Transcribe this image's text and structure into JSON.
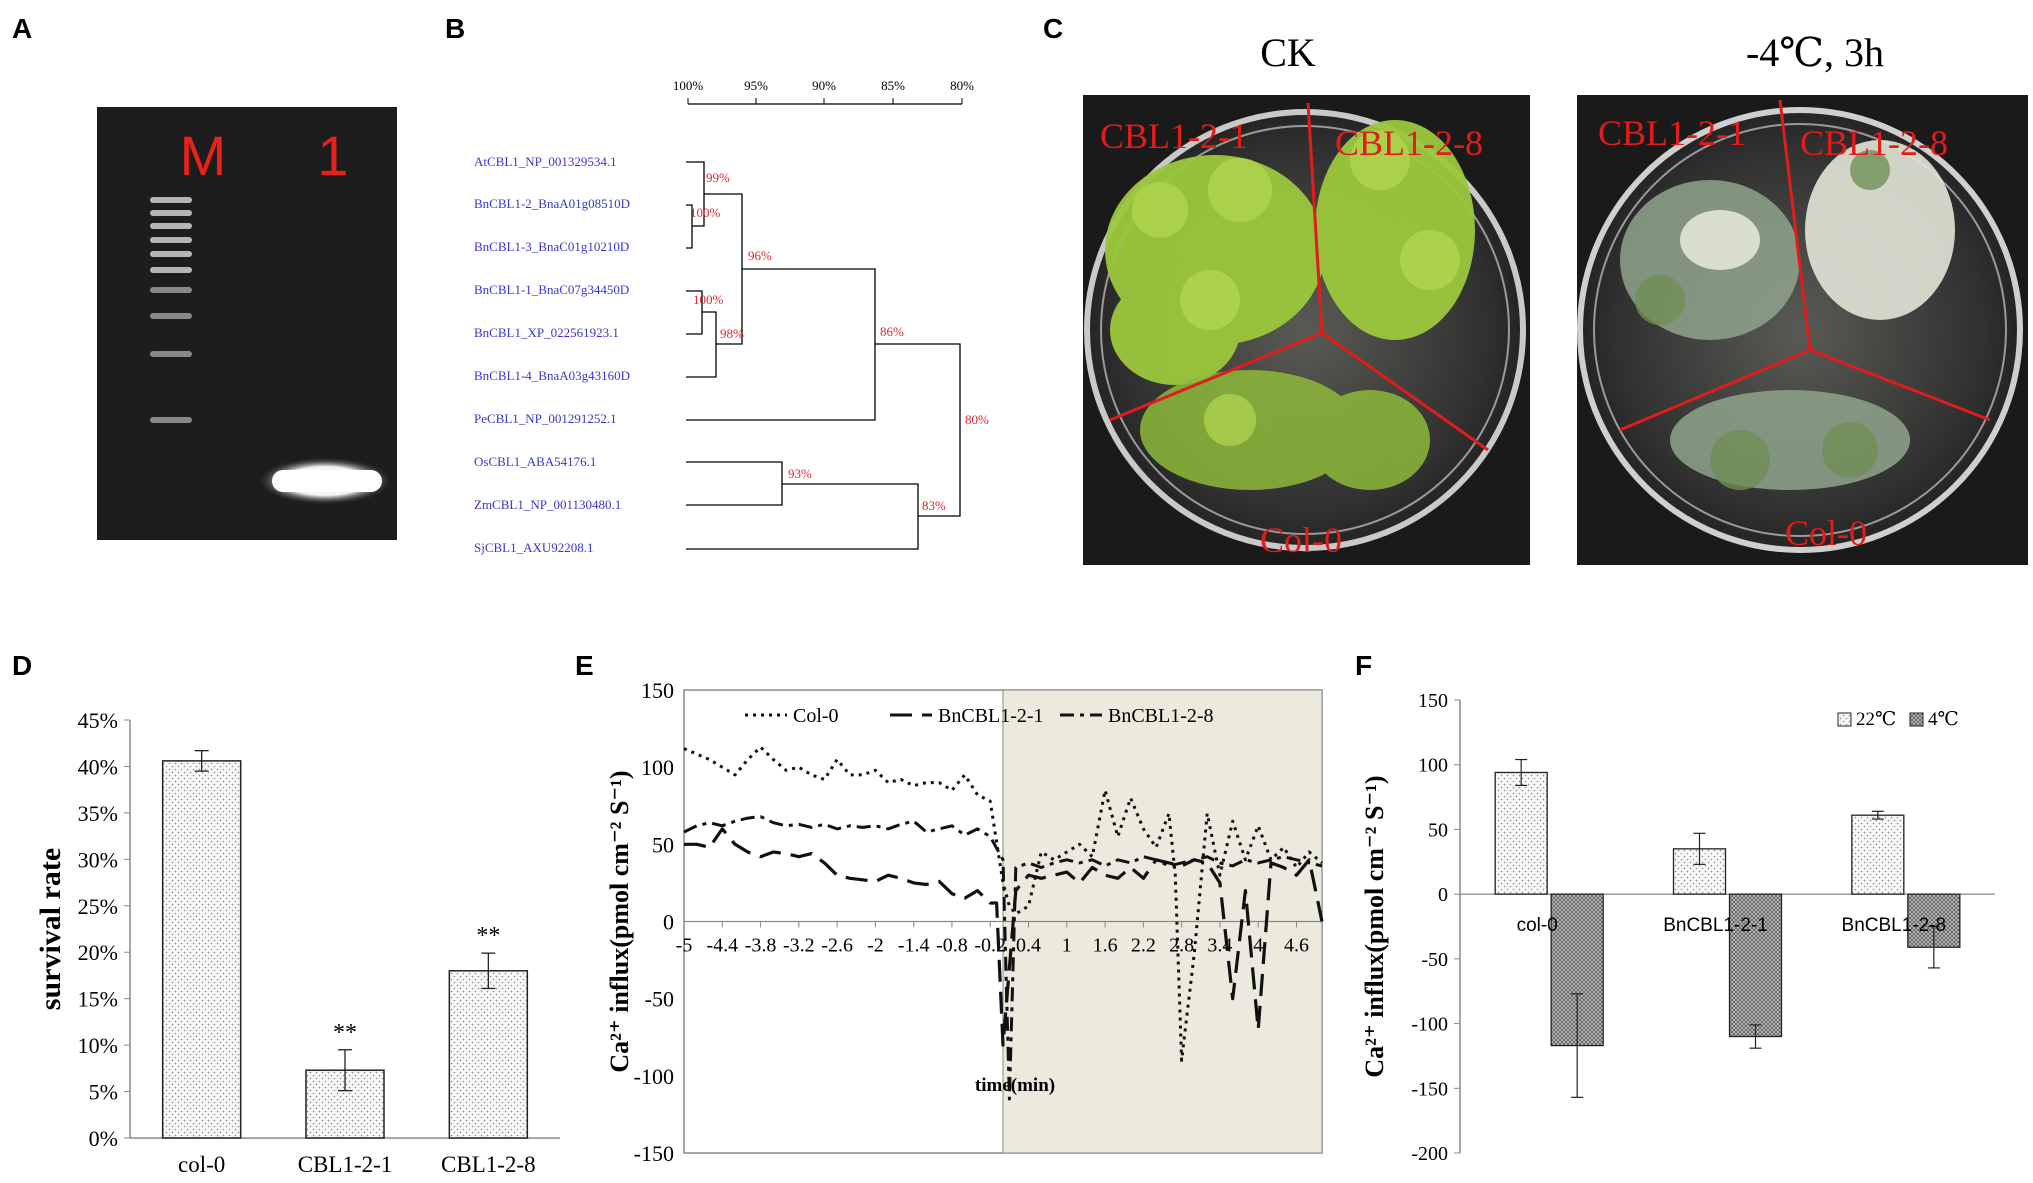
{
  "panel_labels": [
    "A",
    "B",
    "C",
    "D",
    "E",
    "F"
  ],
  "colors": {
    "gel_bg": "#1d1d1d",
    "gel_text": "#e8211b",
    "tree_label": "#3a37c8",
    "tree_support": "#e0252e",
    "plate_cut": "#e01c1c",
    "shade": "#ece9dd",
    "bar_fill": "#f4f4f4",
    "bar_fill_dark": "#b5b5b5"
  },
  "gel": {
    "lanes": [
      "M",
      "1"
    ],
    "marker_bands": 10
  },
  "tree": {
    "scale_ticks": [
      "100%",
      "95%",
      "90%",
      "85%",
      "80%"
    ],
    "taxa": [
      "AtCBL1_NP_001329534.1",
      "BnCBL1-2_BnaA01g08510D",
      "BnCBL1-3_BnaC01g10210D",
      "BnCBL1-1_BnaC07g34450D",
      "BnCBL1_XP_022561923.1",
      "BnCBL1-4_BnaA03g43160D",
      "PeCBL1_NP_001291252.1",
      "OsCBL1_ABA54176.1",
      "ZmCBL1_NP_001130480.1",
      "SjCBL1_AXU92208.1"
    ],
    "supports": [
      "99%",
      "100%",
      "96%",
      "100%",
      "98%",
      "86%",
      "80%",
      "93%",
      "83%"
    ]
  },
  "photo": {
    "conditions": [
      "CK",
      "-4℃, 3h"
    ],
    "lines": [
      "CBL1-2-1",
      "CBL1-2-8",
      "Col-0"
    ]
  },
  "chart_data": [
    {
      "panel": "D",
      "type": "bar",
      "title": "",
      "xlabel": "",
      "ylabel": "survival rate",
      "ylim": [
        0,
        45
      ],
      "yticks": [
        "0%",
        "5%",
        "10%",
        "15%",
        "20%",
        "25%",
        "30%",
        "35%",
        "40%",
        "45%"
      ],
      "categories": [
        "col-0",
        "CBL1-2-1",
        "CBL1-2-8"
      ],
      "values": [
        40.6,
        7.3,
        18.0
      ],
      "errors": [
        1.1,
        2.2,
        1.9
      ],
      "annotations": [
        "",
        "**",
        "**"
      ]
    },
    {
      "panel": "E",
      "type": "line",
      "xlabel": "time(min)",
      "ylabel": "Ca²⁺ influx(pmol cm⁻² S⁻¹)",
      "ylim": [
        -150,
        150
      ],
      "yticks": [
        "-150",
        "-100",
        "-50",
        "0",
        "50",
        "100",
        "150"
      ],
      "xlim": [
        -5,
        5
      ],
      "xticks": [
        "-5",
        "-4.4",
        "-3.8",
        "-3.2",
        "-2.6",
        "-2",
        "-1.4",
        "-0.8",
        "-0.2",
        "0.4",
        "1",
        "1.6",
        "2.2",
        "2.8",
        "3.4",
        "4",
        "4.6"
      ],
      "shaded_region": [
        0,
        5
      ],
      "series": [
        {
          "name": "Col-0",
          "style": "dotted",
          "x": [
            -5,
            -4.6,
            -4.4,
            -4.2,
            -4.0,
            -3.8,
            -3.6,
            -3.4,
            -3.2,
            -3.0,
            -2.8,
            -2.6,
            -2.4,
            -2.2,
            -2.0,
            -1.8,
            -1.6,
            -1.4,
            -1.2,
            -1.0,
            -0.8,
            -0.6,
            -0.4,
            -0.2,
            0.0,
            0.1,
            0.2,
            0.4,
            0.6,
            0.8,
            1.0,
            1.2,
            1.4,
            1.6,
            1.8,
            2.0,
            2.2,
            2.4,
            2.6,
            2.7,
            2.8,
            3.0,
            3.2,
            3.4,
            3.6,
            3.8,
            4.0,
            4.2,
            4.4,
            4.6,
            4.8,
            5.0
          ],
          "y": [
            112,
            105,
            100,
            95,
            105,
            113,
            105,
            98,
            100,
            95,
            92,
            105,
            95,
            95,
            98,
            90,
            92,
            88,
            90,
            90,
            85,
            95,
            82,
            78,
            25,
            10,
            5,
            10,
            45,
            40,
            45,
            50,
            42,
            85,
            55,
            80,
            60,
            48,
            70,
            30,
            -90,
            -20,
            70,
            30,
            65,
            40,
            62,
            40,
            48,
            35,
            45,
            38
          ]
        },
        {
          "name": "BnCBL1-2-1",
          "style": "dashed",
          "x": [
            -5,
            -4.8,
            -4.6,
            -4.4,
            -4.2,
            -4.0,
            -3.8,
            -3.6,
            -3.4,
            -3.2,
            -3.0,
            -2.8,
            -2.6,
            -2.4,
            -2.2,
            -2.0,
            -1.8,
            -1.6,
            -1.4,
            -1.2,
            -1.0,
            -0.8,
            -0.6,
            -0.4,
            -0.2,
            -0.1,
            0.0,
            0.2,
            0.4,
            0.6,
            0.8,
            1.0,
            1.2,
            1.4,
            1.6,
            1.8,
            2.0,
            2.2,
            2.4,
            2.6,
            2.8,
            3.0,
            3.2,
            3.4,
            3.6,
            3.8,
            4.0,
            4.2,
            4.4,
            4.6,
            4.8,
            5.0
          ],
          "y": [
            50,
            50,
            48,
            60,
            50,
            45,
            42,
            45,
            44,
            42,
            44,
            38,
            30,
            28,
            27,
            26,
            30,
            28,
            25,
            24,
            26,
            18,
            15,
            20,
            12,
            12,
            -80,
            20,
            30,
            28,
            30,
            32,
            25,
            35,
            30,
            28,
            35,
            28,
            40,
            38,
            36,
            40,
            38,
            25,
            -50,
            20,
            -70,
            38,
            35,
            30,
            40,
            0
          ]
        },
        {
          "name": "BnCBL1-2-8",
          "style": "dashed",
          "x": [
            -5,
            -4.8,
            -4.6,
            -4.4,
            -4.2,
            -4.0,
            -3.8,
            -3.6,
            -3.4,
            -3.2,
            -3.0,
            -2.8,
            -2.6,
            -2.4,
            -2.2,
            -2.0,
            -1.8,
            -1.6,
            -1.4,
            -1.2,
            -1.0,
            -0.8,
            -0.6,
            -0.4,
            -0.2,
            0.0,
            0.1,
            0.2,
            0.4,
            0.6,
            0.8,
            1.0,
            1.2,
            1.4,
            1.6,
            1.8,
            2.0,
            2.2,
            2.4,
            2.6,
            2.8,
            3.0,
            3.2,
            3.4,
            3.6,
            3.8,
            4.0,
            4.2,
            4.4,
            4.6,
            4.8,
            5.0
          ],
          "y": [
            58,
            62,
            64,
            62,
            65,
            67,
            68,
            64,
            62,
            63,
            61,
            63,
            60,
            62,
            61,
            62,
            60,
            63,
            65,
            58,
            60,
            62,
            56,
            60,
            55,
            40,
            -115,
            35,
            38,
            35,
            38,
            40,
            38,
            40,
            36,
            40,
            38,
            42,
            40,
            36,
            38,
            40,
            42,
            38,
            36,
            40,
            38,
            40,
            42,
            40,
            38,
            36
          ]
        }
      ]
    },
    {
      "panel": "F",
      "type": "bar",
      "xlabel": "",
      "ylabel": "Ca²⁺ influx(pmol cm⁻² S⁻¹)",
      "ylim": [
        -200,
        150
      ],
      "yticks": [
        "-200",
        "-150",
        "-100",
        "-50",
        "0",
        "50",
        "100",
        "150"
      ],
      "categories": [
        "col-0",
        "BnCBL1-2-1",
        "BnCBL1-2-8"
      ],
      "series": [
        {
          "name": "22℃",
          "values": [
            94,
            35,
            61
          ],
          "errors": [
            10,
            12,
            3
          ]
        },
        {
          "name": "4℃",
          "values": [
            -117,
            -110,
            -41
          ],
          "errors": [
            40,
            9,
            16
          ]
        }
      ]
    }
  ]
}
